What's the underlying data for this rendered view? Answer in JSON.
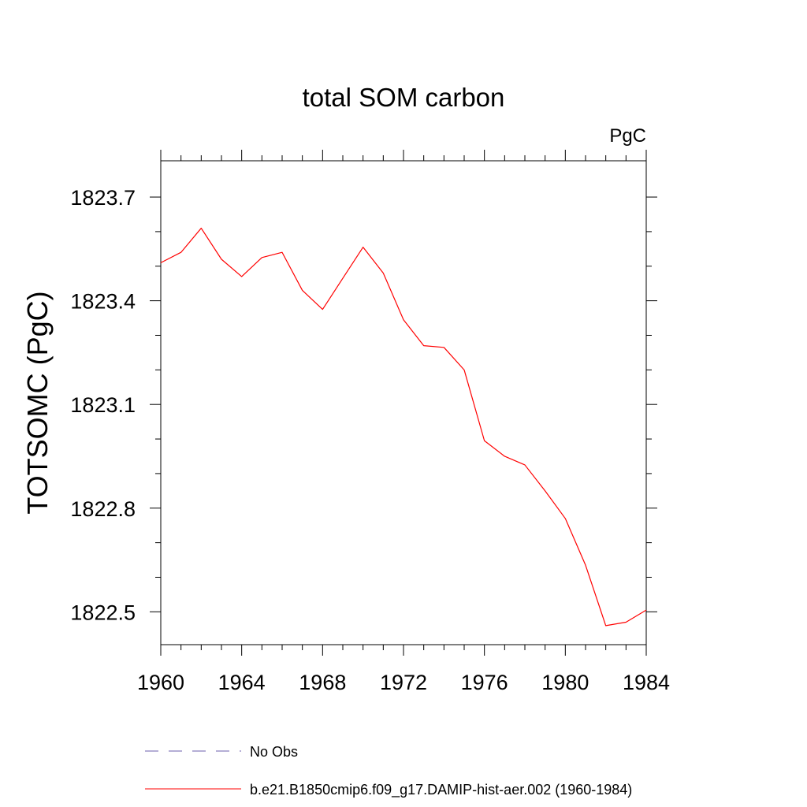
{
  "chart_data": {
    "type": "line",
    "title": "total SOM carbon",
    "units": "PgC",
    "xlabel": "",
    "ylabel": "TOTSOMC  (PgC)",
    "xlim": [
      1960,
      1984
    ],
    "ylim": [
      1822.405,
      1823.805
    ],
    "x_ticks": [
      1960,
      1964,
      1968,
      1972,
      1976,
      1980,
      1984
    ],
    "x_tick_labels": [
      "1960",
      "1964",
      "1968",
      "1972",
      "1976",
      "1980",
      "1984"
    ],
    "y_ticks": [
      1822.5,
      1822.8,
      1823.1,
      1823.4,
      1823.7
    ],
    "y_tick_labels": [
      "1822.5",
      "1822.8",
      "1823.1",
      "1823.4",
      "1823.7"
    ],
    "grid": false,
    "legend_position": "bottom",
    "series": [
      {
        "name": "No Obs",
        "color": "#6b5fae",
        "style": "dashed",
        "x": [],
        "values": []
      },
      {
        "name": "b.e21.B1850cmip6.f09_g17.DAMIP-hist-aer.002 (1960-1984)",
        "color": "#ff0000",
        "style": "solid",
        "x": [
          1960,
          1961,
          1962,
          1963,
          1964,
          1965,
          1966,
          1967,
          1968,
          1969,
          1970,
          1971,
          1972,
          1973,
          1974,
          1975,
          1976,
          1977,
          1978,
          1979,
          1980,
          1981,
          1982,
          1983,
          1984
        ],
        "values": [
          1823.51,
          1823.54,
          1823.61,
          1823.52,
          1823.47,
          1823.525,
          1823.54,
          1823.43,
          1823.375,
          1823.465,
          1823.555,
          1823.48,
          1823.345,
          1823.27,
          1823.265,
          1823.2,
          1822.995,
          1822.95,
          1822.925,
          1822.85,
          1822.77,
          1822.635,
          1822.46,
          1822.47,
          1822.505
        ]
      }
    ]
  }
}
